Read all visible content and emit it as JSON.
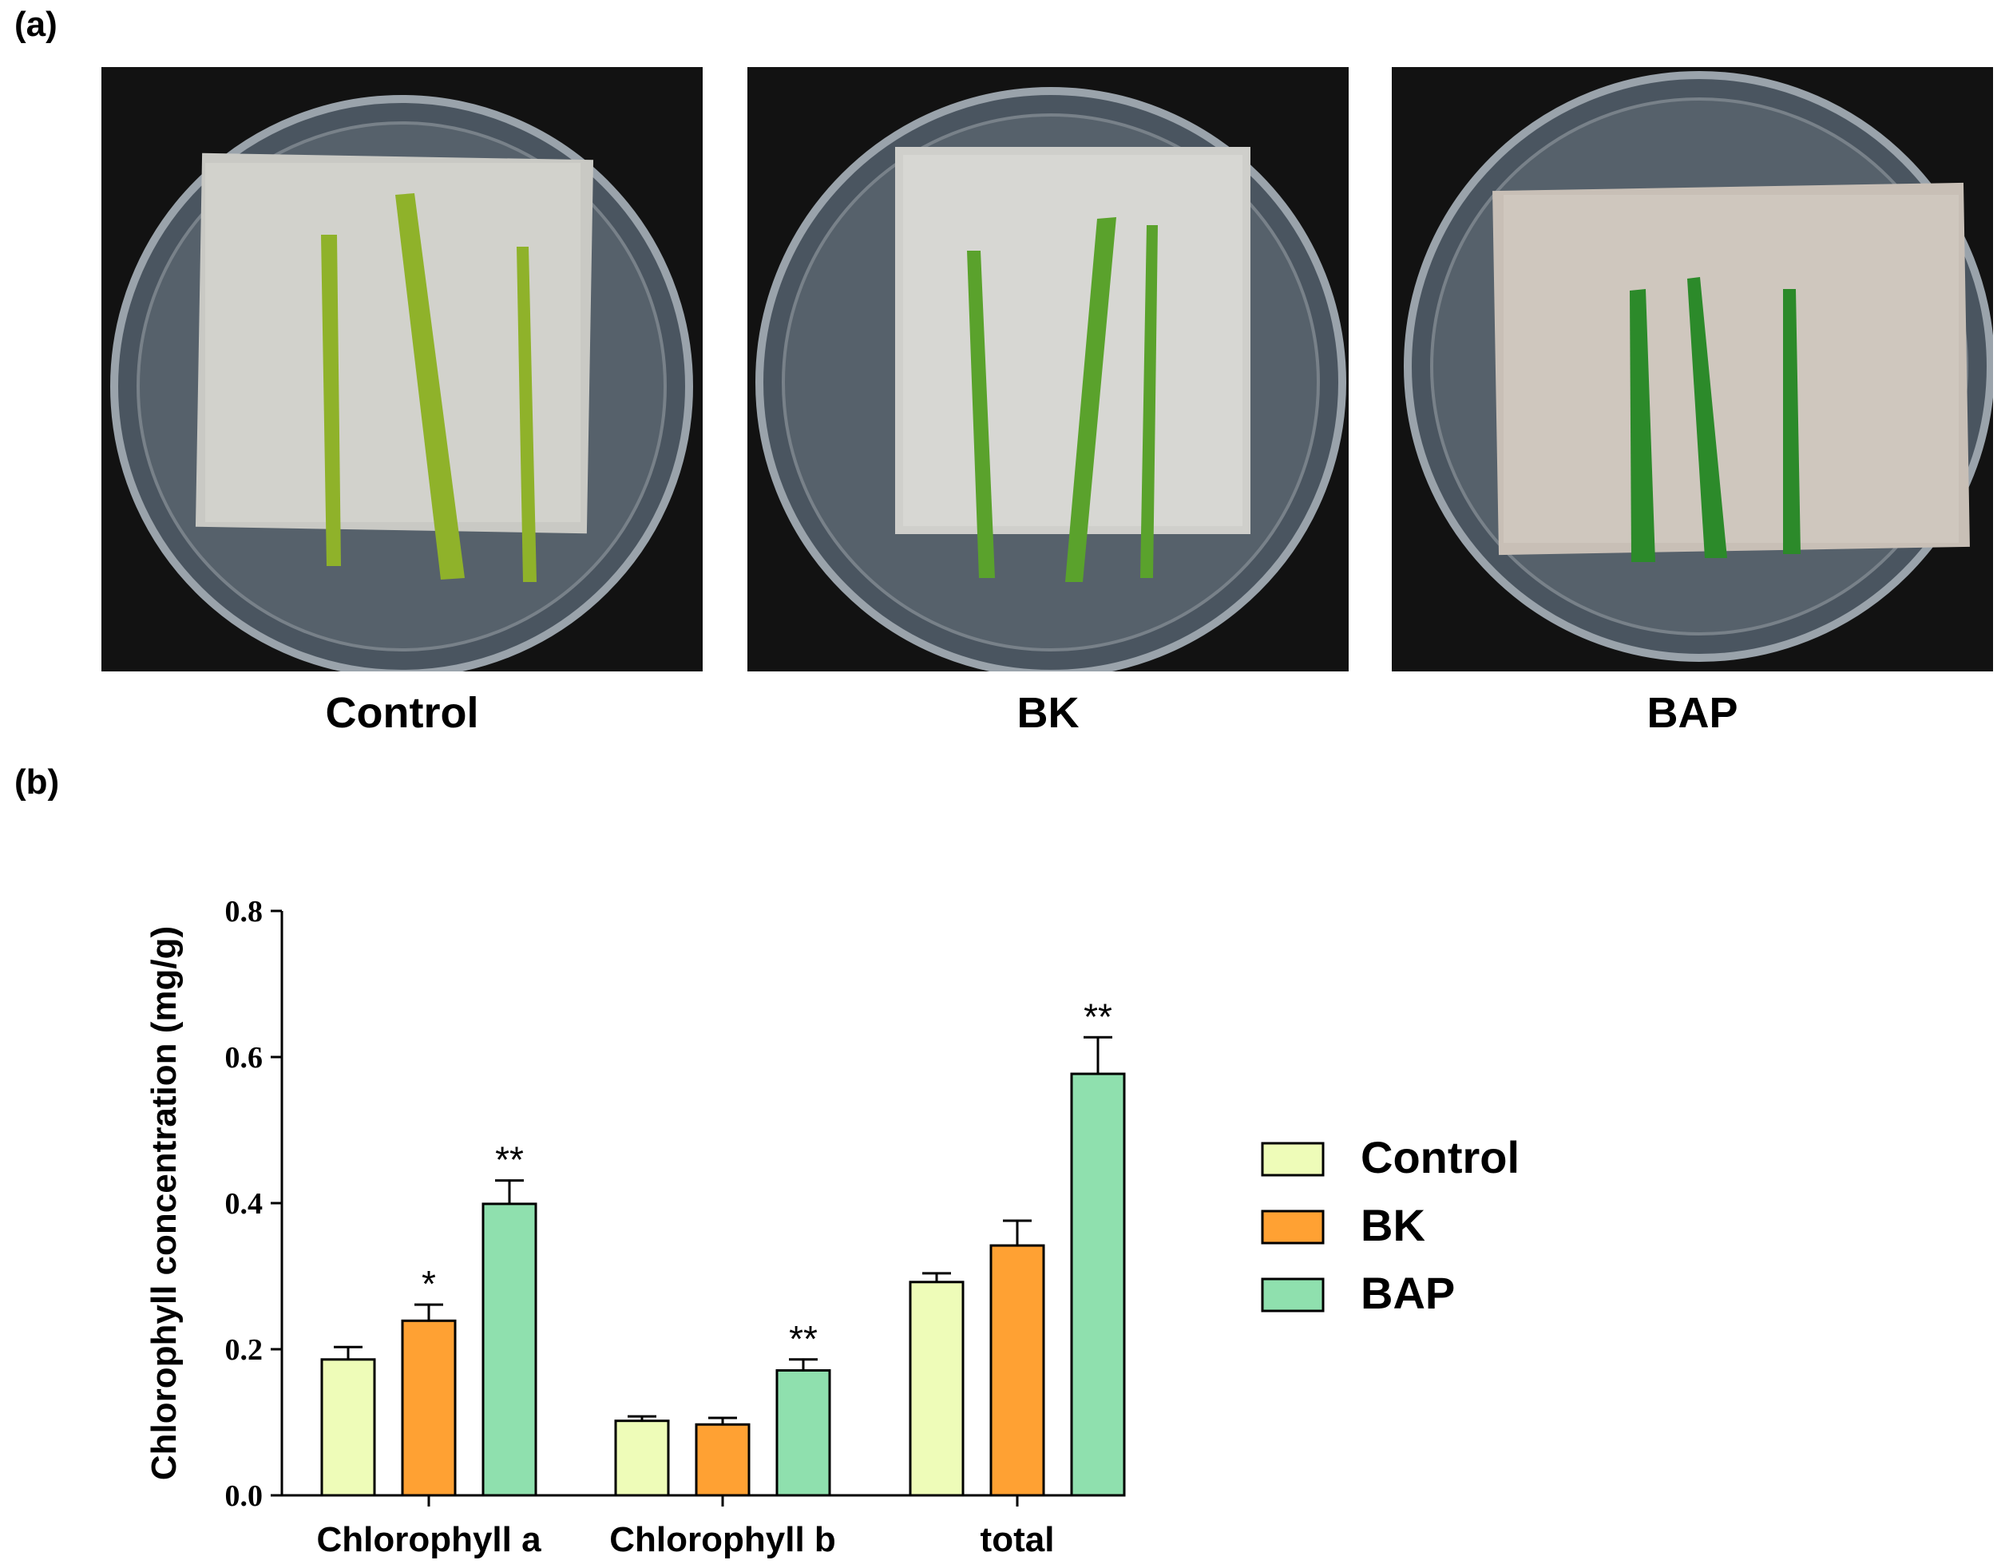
{
  "panel_a": {
    "label": "(a)",
    "photos": [
      {
        "caption": "Control",
        "leaf_color": "#8fb22a"
      },
      {
        "caption": "BK",
        "leaf_color": "#5aa22c"
      },
      {
        "caption": "BAP",
        "leaf_color": "#2c8a2a"
      }
    ]
  },
  "panel_b": {
    "label": "(b)"
  },
  "chart_data": {
    "type": "bar",
    "ylabel": "Chlorophyll concentration (mg/g)",
    "xlabel": "",
    "ylim": [
      0,
      0.8
    ],
    "yticks": [
      0.0,
      0.2,
      0.4,
      0.6,
      0.8
    ],
    "ytick_labels": [
      "0.0",
      "0.2",
      "0.4",
      "0.6",
      "0.8"
    ],
    "categories": [
      "Chlorophyll a",
      "Chlorophyll b",
      "total"
    ],
    "series": [
      {
        "name": "Control",
        "color": "#eefcb8",
        "values": [
          0.186,
          0.102,
          0.292
        ],
        "errors": [
          0.017,
          0.006,
          0.012
        ],
        "marks": [
          "",
          "",
          ""
        ]
      },
      {
        "name": "BK",
        "color": "#ffa133",
        "values": [
          0.239,
          0.097,
          0.342
        ],
        "errors": [
          0.022,
          0.009,
          0.034
        ],
        "marks": [
          "*",
          "",
          ""
        ]
      },
      {
        "name": "BAP",
        "color": "#8fe0ae",
        "values": [
          0.399,
          0.171,
          0.577
        ],
        "errors": [
          0.032,
          0.015,
          0.05
        ],
        "marks": [
          "**",
          "**",
          "**"
        ]
      }
    ],
    "legend_position": "right"
  }
}
